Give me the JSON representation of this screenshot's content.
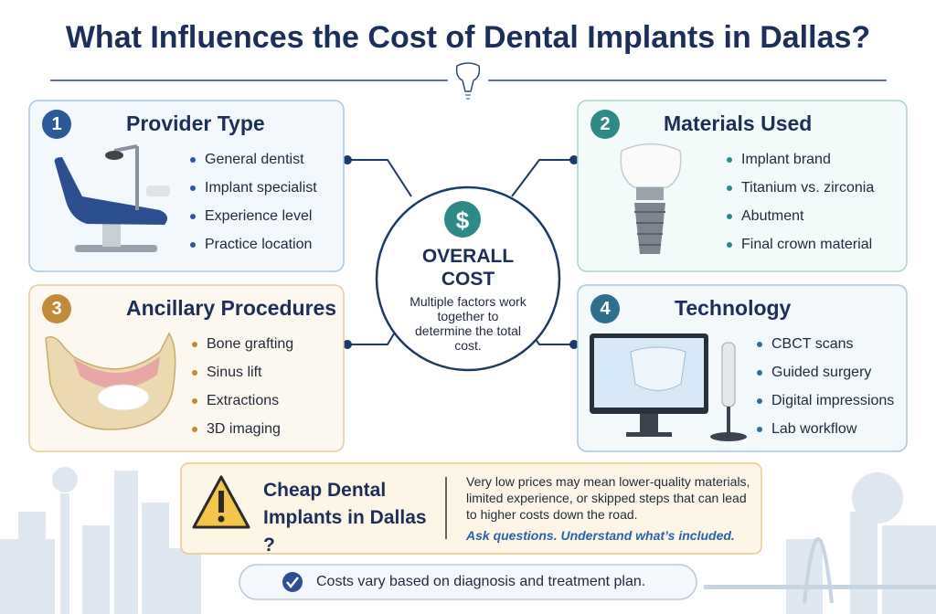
{
  "header": {
    "title": "What Influences the Cost of Dental Implants in Dallas?"
  },
  "center": {
    "lines": [
      "OVERALL",
      "COST"
    ],
    "text": "Multiple factors work together to determine the total cost."
  },
  "cards": [
    {
      "number": 1,
      "title": "Provider Type",
      "items": [
        "General dentist",
        "Implant specialist",
        "Experience level",
        "Practice location"
      ]
    },
    {
      "number": 2,
      "title": "Materials Used",
      "items": [
        "Implant brand",
        "Titanium vs. zirconia",
        "Abutment",
        "Final crown material"
      ]
    },
    {
      "number": 3,
      "title": "Ancillary Procedures",
      "items": [
        "Bone grafting",
        "Sinus lift",
        "Extractions",
        "3D imaging"
      ]
    },
    {
      "number": 4,
      "title": "Technology",
      "items": [
        "CBCT scans",
        "Guided surgery",
        "Digital impressions",
        "Lab workflow"
      ]
    }
  ],
  "warning": {
    "title": "Cheap Dental Implants in Dallas ?",
    "text": "Very low prices may mean lower-quality materials, limited experience, or skipped steps that can lead to higher costs down the road.",
    "cta": "Ask questions. Understand what’s included."
  },
  "footer": {
    "note": "Costs vary based on diagnosis and treatment plan."
  }
}
